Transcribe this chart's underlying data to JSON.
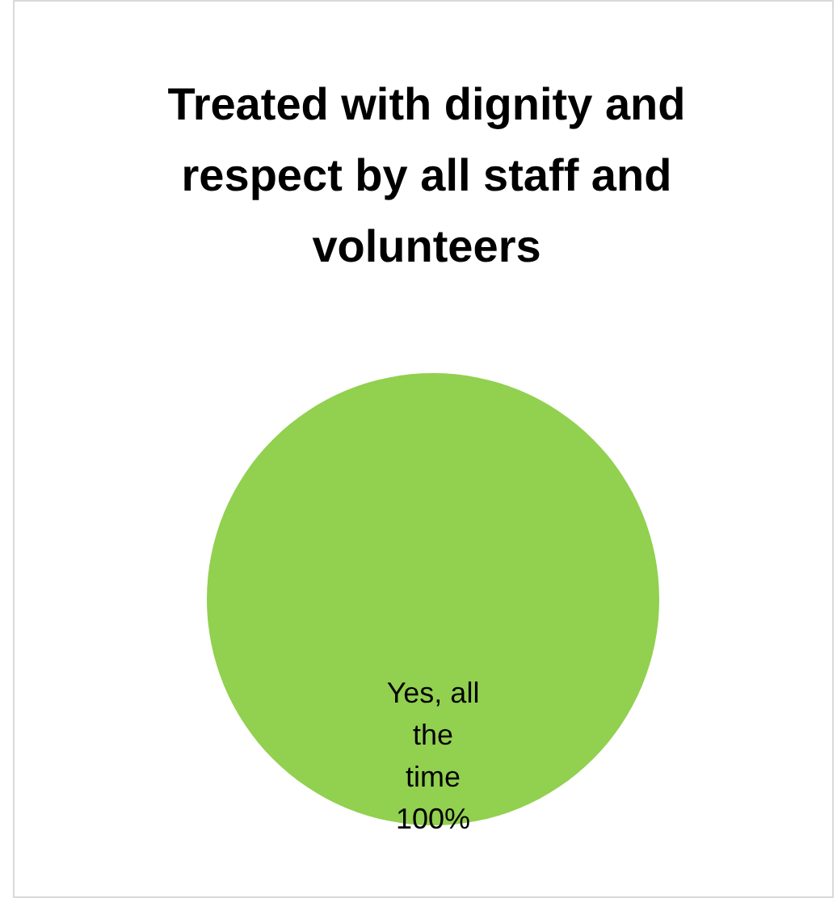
{
  "chart_data": {
    "type": "pie",
    "title": "Treated with dignity and respect by all staff and volunteers",
    "categories": [
      "Yes, all the time"
    ],
    "values": [
      100
    ],
    "colors": [
      "#92d050"
    ],
    "value_labels": [
      "100%"
    ],
    "legend": false
  }
}
